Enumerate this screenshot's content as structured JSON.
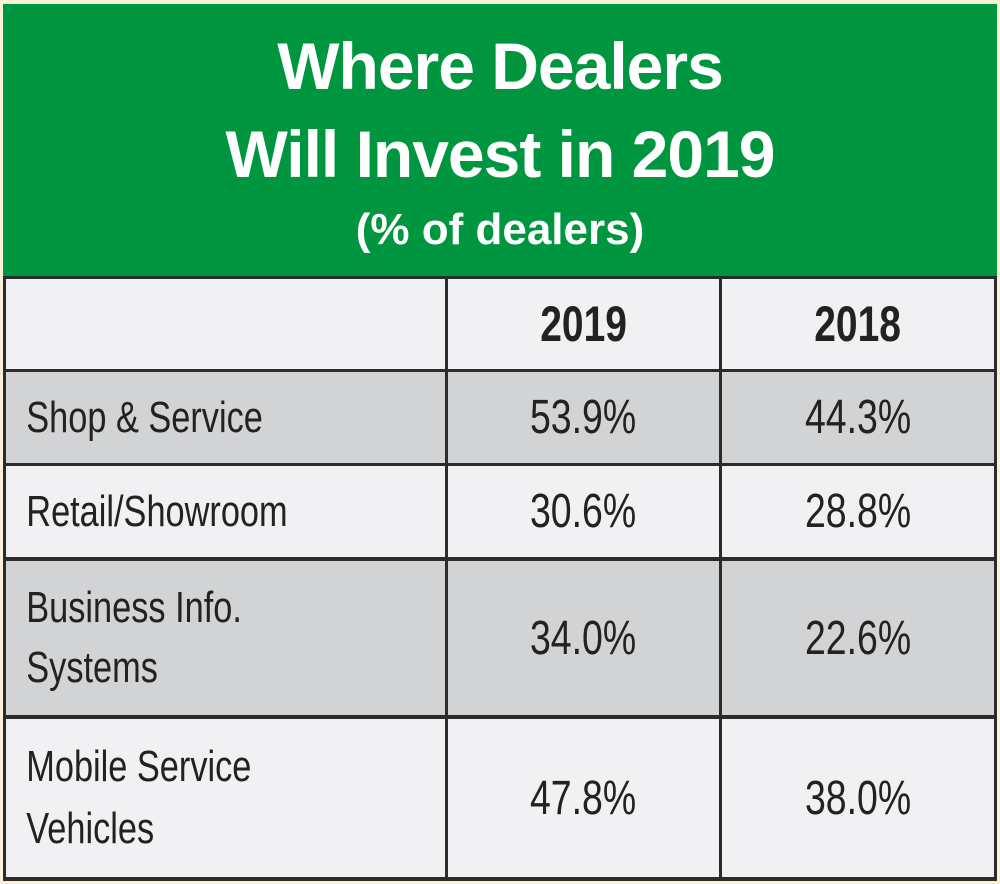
{
  "chart_data": {
    "type": "table",
    "title_lines": [
      "Where Dealers",
      "Will Invest in 2019"
    ],
    "subtitle": "(% of dealers)",
    "columns": [
      "",
      "2019",
      "2018"
    ],
    "rows": [
      {
        "label_lines": [
          "Shop & Service"
        ],
        "values": [
          "53.9%",
          "44.3%"
        ],
        "numeric": [
          53.9,
          44.3
        ]
      },
      {
        "label_lines": [
          "Retail/Showroom"
        ],
        "values": [
          "30.6%",
          "28.8%"
        ],
        "numeric": [
          30.6,
          28.8
        ]
      },
      {
        "label_lines": [
          "Business Info.",
          "Systems"
        ],
        "values": [
          "34.0%",
          "22.6%"
        ],
        "numeric": [
          34.0,
          22.6
        ]
      },
      {
        "label_lines": [
          "Mobile Service",
          "Vehicles"
        ],
        "values": [
          "47.8%",
          "38.0%"
        ],
        "numeric": [
          47.8,
          38.0
        ]
      }
    ]
  },
  "colors": {
    "header_green": "#009640",
    "row_light": "#f1f1f3",
    "row_dark": "#d2d3d5",
    "grid": "#2b2b2b"
  }
}
